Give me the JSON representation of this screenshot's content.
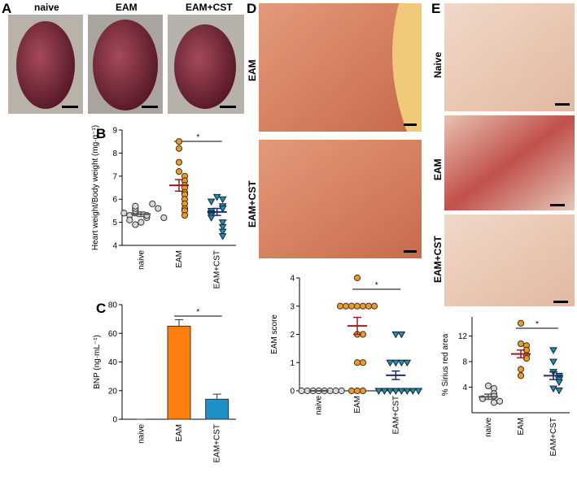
{
  "panels": [
    "A",
    "B",
    "C",
    "D",
    "E"
  ],
  "images": {
    "A": [
      "naive",
      "EAM",
      "EAM+CST"
    ],
    "D": [
      "EAM",
      "EAM+CST"
    ],
    "E": [
      "Naive",
      "EAM",
      "EAM+CST"
    ]
  },
  "chart_data": [
    {
      "type": "dot",
      "ylabel": "Heart weight/Body weight (mg·g⁻¹)",
      "categories": [
        "naive",
        "EAM",
        "EAM+CST"
      ],
      "points": [
        [
          5.0,
          5.2,
          5.3,
          5.4,
          5.5,
          5.6,
          5.7,
          5.3,
          5.1,
          4.9,
          5.4,
          5.6,
          5.2,
          5.8
        ],
        [
          8.5,
          8.2,
          7.6,
          7.2,
          7.0,
          6.8,
          6.6,
          6.5,
          6.3,
          6.2,
          6.0,
          5.8,
          5.6,
          5.5,
          5.3
        ],
        [
          6.1,
          6.0,
          5.9,
          5.7,
          5.6,
          5.5,
          5.4,
          5.3,
          5.2,
          5.0,
          4.8,
          4.6,
          4.4
        ]
      ],
      "means": [
        5.35,
        6.6,
        5.45
      ],
      "errors": [
        0.1,
        0.25,
        0.15
      ],
      "colors": [
        "#d9d9d9",
        "#f39a1e",
        "#1f8fb0"
      ],
      "markers": [
        "circle",
        "circle",
        "triangle"
      ],
      "mean_colors": [
        "#555555",
        "#9b1c1c",
        "#1f2a6b"
      ],
      "ylim": [
        4,
        9
      ],
      "yticks": [
        4,
        5,
        6,
        7,
        8,
        9
      ],
      "significance": "*"
    },
    {
      "type": "bar",
      "ylabel": "BNP (ng·mL⁻¹)",
      "categories": [
        "naive",
        "EAM",
        "EAM+CST"
      ],
      "values": [
        0,
        65,
        14
      ],
      "errors": [
        0,
        4.5,
        3.5
      ],
      "colors": [
        "#999999",
        "#ff7f0e",
        "#1f8fc8"
      ],
      "ylim": [
        0,
        80
      ],
      "yticks": [
        0,
        20,
        40,
        60,
        80
      ],
      "significance": "*"
    },
    {
      "type": "dot",
      "ylabel": "EAM score",
      "categories": [
        "naive",
        "EAM",
        "EAM+CST"
      ],
      "points": [
        [
          0,
          0,
          0,
          0,
          0,
          0,
          0,
          0
        ],
        [
          4,
          3,
          3,
          3,
          3,
          3,
          3,
          3,
          2,
          2,
          1,
          1,
          0,
          0,
          0
        ],
        [
          2,
          2,
          1,
          1,
          1,
          1,
          0,
          0,
          0,
          0,
          0,
          0,
          0,
          0
        ]
      ],
      "means": [
        0,
        2.3,
        0.55
      ],
      "errors": [
        0,
        0.3,
        0.15
      ],
      "colors": [
        "#d9d9d9",
        "#f39a1e",
        "#1f8fb0"
      ],
      "markers": [
        "circle",
        "circle",
        "triangle"
      ],
      "mean_colors": [
        "#555555",
        "#9b1c1c",
        "#1f2a6b"
      ],
      "ylim": [
        0,
        4
      ],
      "yticks": [
        0,
        1,
        2,
        3,
        4
      ],
      "significance": "*"
    },
    {
      "type": "dot",
      "ylabel": "% Sirius red area",
      "categories": [
        "naive",
        "EAM",
        "EAM+CST"
      ],
      "points": [
        [
          4.2,
          3.8,
          3.0,
          2.6,
          2.2,
          1.6,
          1.8
        ],
        [
          14,
          10.8,
          10.5,
          9.8,
          9.0,
          8.5,
          6.8,
          5.8
        ],
        [
          9.8,
          8.0,
          6.4,
          5.8,
          5.2,
          4.8,
          3.8,
          3.5
        ]
      ],
      "means": [
        2.5,
        9.2,
        5.8
      ],
      "errors": [
        0.4,
        0.6,
        0.6
      ],
      "colors": [
        "#d9d9d9",
        "#f39a1e",
        "#1f8fb0"
      ],
      "markers": [
        "circle",
        "circle",
        "triangle"
      ],
      "mean_colors": [
        "#555555",
        "#9b1c1c",
        "#1f2a6b"
      ],
      "ylim": [
        0,
        15
      ],
      "yticks": [
        4,
        8,
        12
      ],
      "significance": "*"
    }
  ]
}
